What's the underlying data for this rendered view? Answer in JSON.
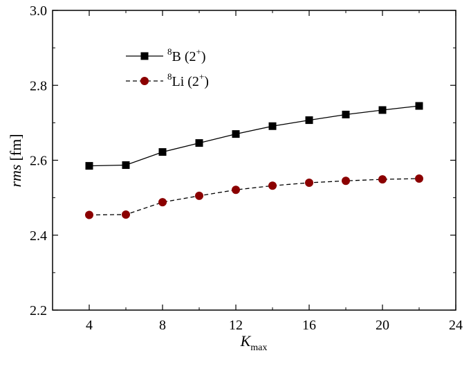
{
  "chart_data": {
    "type": "line",
    "x": [
      4,
      6,
      8,
      10,
      12,
      14,
      16,
      18,
      20,
      22
    ],
    "series": [
      {
        "name_sup": "8",
        "name_base": "B (2",
        "name_sup2": "+",
        "name_end": ")",
        "values": [
          2.585,
          2.587,
          2.622,
          2.646,
          2.67,
          2.691,
          2.707,
          2.722,
          2.734,
          2.745
        ],
        "color": "#000000",
        "marker": "square",
        "line": "solid"
      },
      {
        "name_sup": "8",
        "name_base": "Li (2",
        "name_sup2": "+",
        "name_end": ")",
        "values": [
          2.454,
          2.455,
          2.488,
          2.505,
          2.521,
          2.532,
          2.54,
          2.545,
          2.549,
          2.551
        ],
        "color": "#8b0000",
        "marker": "circle",
        "line": "dashed"
      }
    ],
    "xlabel": "K",
    "xlabel_sub": "max",
    "ylabel": "rms",
    "ylabel_unit": "[fm]",
    "xlim": [
      2,
      24
    ],
    "ylim": [
      2.2,
      3.0
    ],
    "xticks": [
      "4",
      "8",
      "12",
      "16",
      "20",
      "24"
    ],
    "xtick_values": [
      4,
      8,
      12,
      16,
      20,
      24
    ],
    "yticks": [
      "2.2",
      "2.4",
      "2.6",
      "2.8",
      "3.0"
    ],
    "ytick_values": [
      2.2,
      2.4,
      2.6,
      2.8,
      3.0
    ],
    "grid": false,
    "legend_position": "top-left"
  }
}
